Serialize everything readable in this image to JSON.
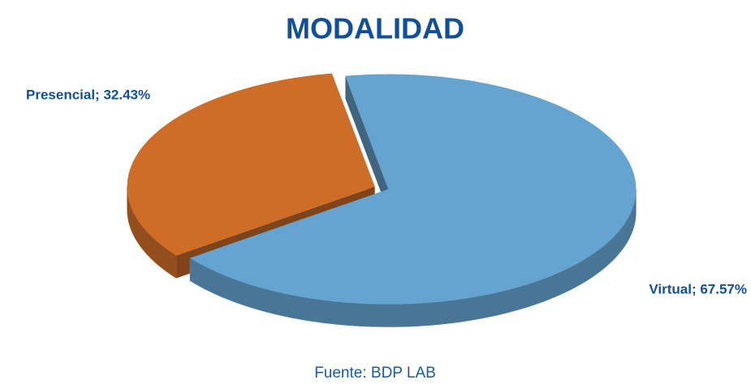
{
  "chart_data": {
    "type": "pie",
    "title": "MODALIDAD",
    "values": [
      67.57,
      32.43
    ],
    "value_labels": [
      "Virtual; 67.57%",
      "Presencial; 32.43%"
    ],
    "colors": [
      "#65a3d0",
      "#cd6d28"
    ],
    "source": "Fuente: BDP LAB"
  }
}
